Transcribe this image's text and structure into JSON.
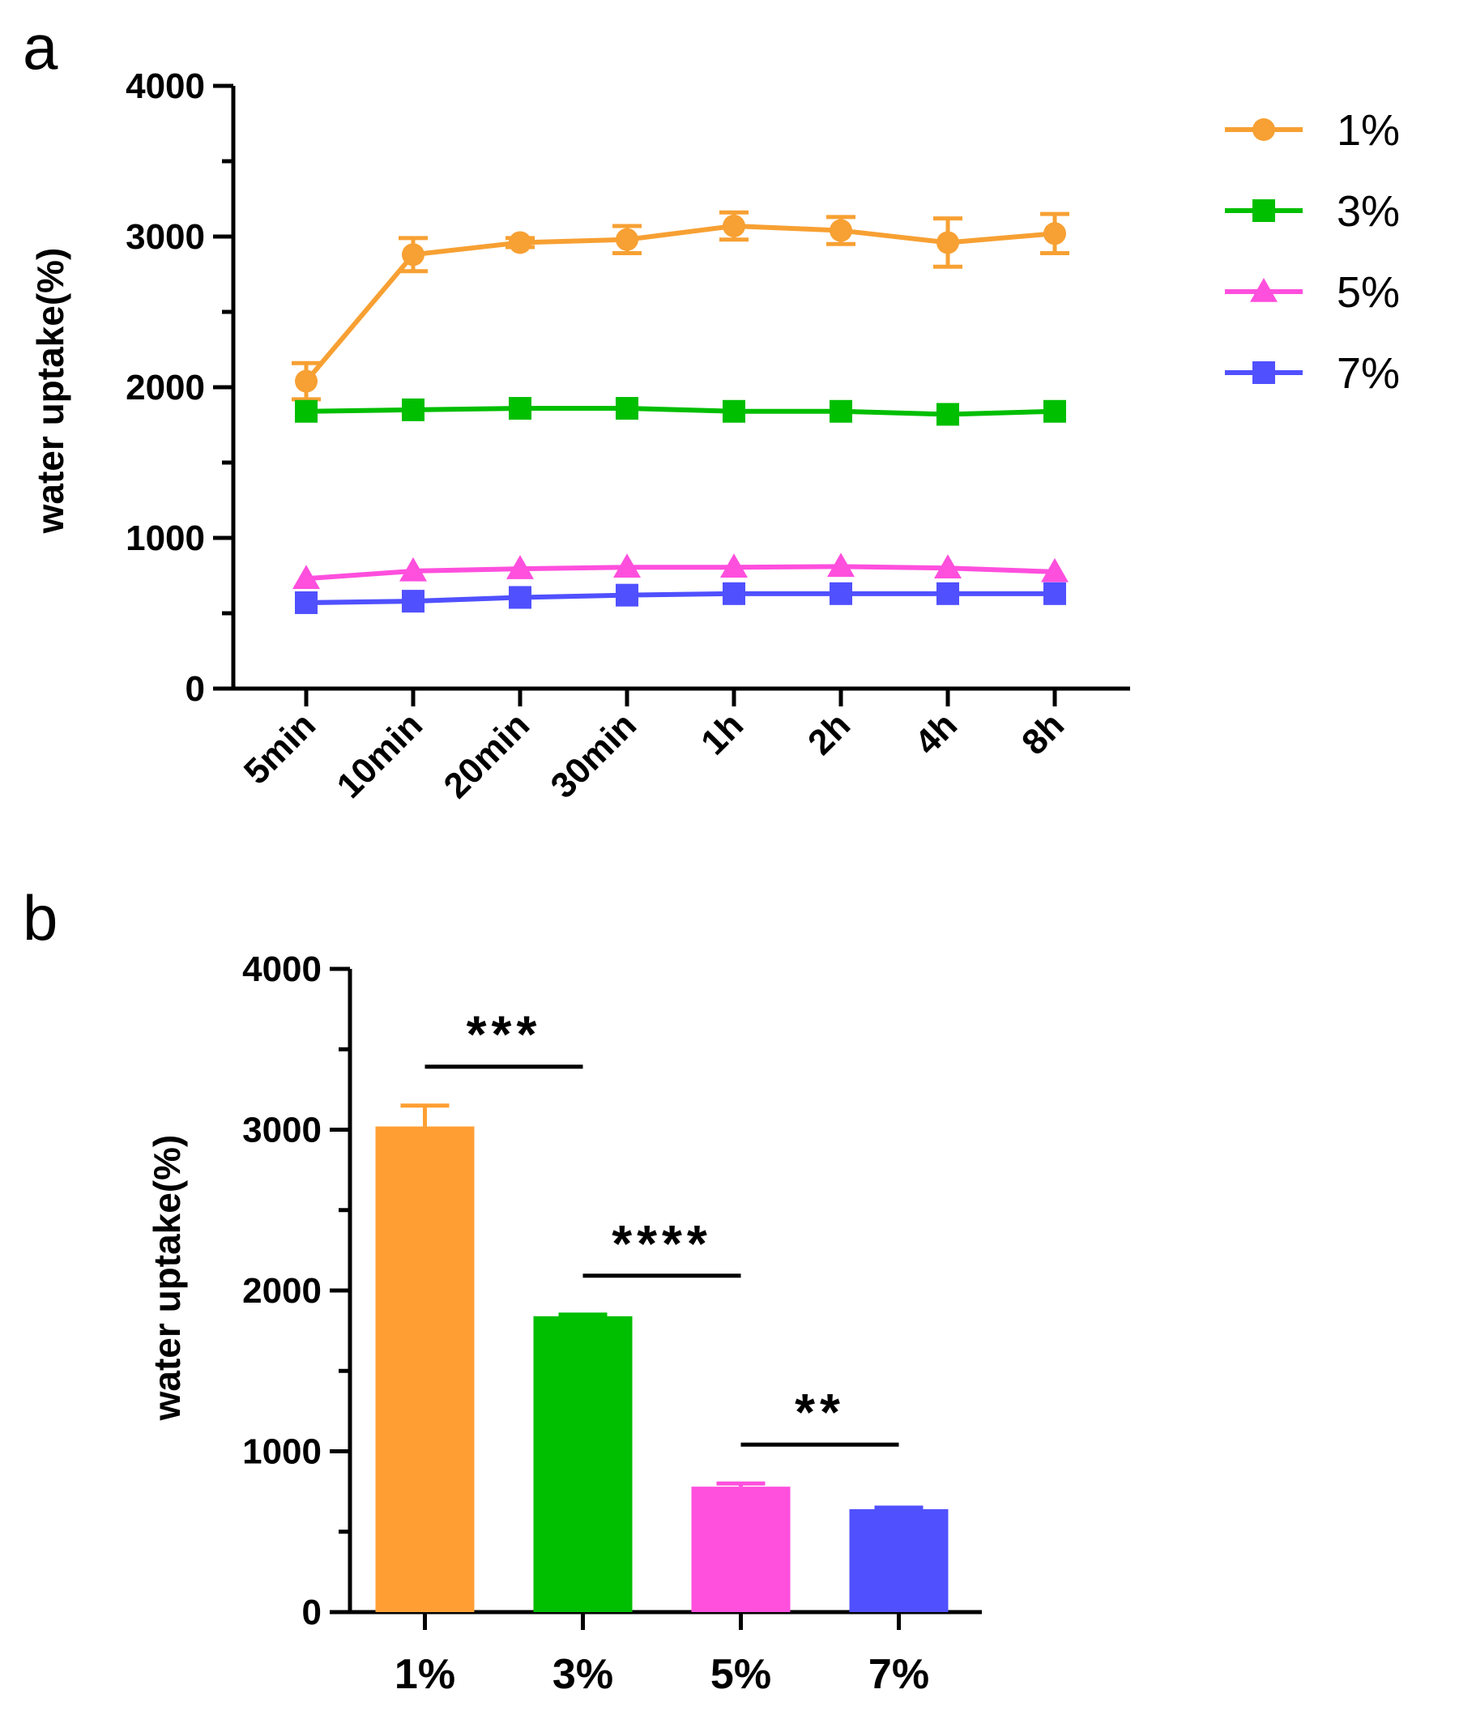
{
  "chart_data": [
    {
      "panel": "a",
      "type": "line",
      "xlabel": "",
      "ylabel": "water uptake(%)",
      "ylim": [
        0,
        4000
      ],
      "yticks": [
        0,
        1000,
        2000,
        3000,
        4000
      ],
      "categories": [
        "5min",
        "10min",
        "20min",
        "30min",
        "1h",
        "2h",
        "4h",
        "8h"
      ],
      "legend_position": "top-right",
      "series": [
        {
          "name": "1%",
          "color": "#F7A033",
          "marker": "circle",
          "values": [
            2040,
            2880,
            2960,
            2980,
            3070,
            3040,
            2960,
            3020
          ],
          "errors": [
            120,
            110,
            30,
            90,
            90,
            90,
            160,
            130
          ]
        },
        {
          "name": "3%",
          "color": "#00BE00",
          "marker": "square",
          "values": [
            1840,
            1850,
            1860,
            1860,
            1840,
            1840,
            1820,
            1840
          ],
          "errors": [
            0,
            0,
            0,
            0,
            0,
            0,
            0,
            0
          ]
        },
        {
          "name": "5%",
          "color": "#FF4FDD",
          "marker": "triangle",
          "values": [
            730,
            780,
            795,
            805,
            805,
            810,
            800,
            775
          ],
          "errors": [
            0,
            0,
            0,
            0,
            0,
            0,
            0,
            0
          ]
        },
        {
          "name": "7%",
          "color": "#5050FF",
          "marker": "square",
          "values": [
            570,
            580,
            605,
            620,
            630,
            630,
            630,
            630
          ],
          "errors": [
            0,
            0,
            0,
            0,
            0,
            0,
            0,
            0
          ]
        }
      ]
    },
    {
      "panel": "b",
      "type": "bar",
      "xlabel": "",
      "ylabel": "water uptake(%)",
      "ylim": [
        0,
        4000
      ],
      "yticks": [
        0,
        1000,
        2000,
        3000,
        4000
      ],
      "categories": [
        "1%",
        "3%",
        "5%",
        "7%"
      ],
      "values": [
        3020,
        1840,
        780,
        640
      ],
      "errors": [
        130,
        10,
        20,
        10
      ],
      "colors": [
        "#FF9F33",
        "#00BE00",
        "#FF4FDD",
        "#5050FF"
      ],
      "significance": [
        {
          "from": "1%",
          "to": "3%",
          "label": "***"
        },
        {
          "from": "3%",
          "to": "5%",
          "label": "****"
        },
        {
          "from": "5%",
          "to": "7%",
          "label": "**"
        }
      ]
    }
  ]
}
